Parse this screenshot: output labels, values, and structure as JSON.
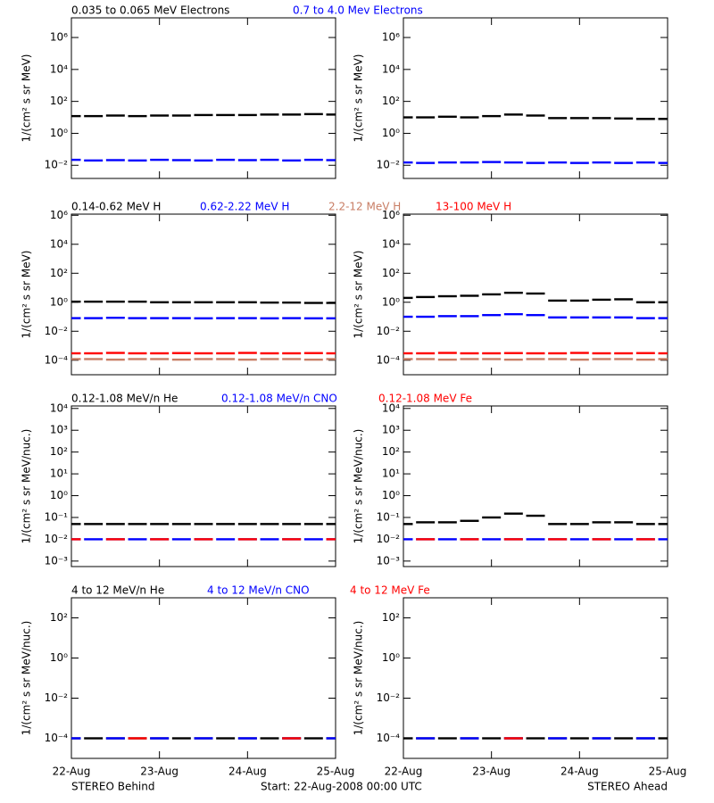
{
  "chart_data": [
    {
      "type": "scatter",
      "log": true,
      "ylabel": "1/(cm² s sr MeV)",
      "ylim": [
        0.0015,
        17000000
      ],
      "yticks": [
        {
          "value": 0.01,
          "label": "10⁻²"
        },
        {
          "value": 1,
          "label": "10⁰"
        },
        {
          "value": 100,
          "label": "10²"
        },
        {
          "value": 10000,
          "label": "10⁴"
        },
        {
          "value": 1000000,
          "label": "10⁶"
        }
      ],
      "x": [
        0,
        0.25,
        0.5,
        0.75,
        1,
        1.25,
        1.5,
        1.75,
        2,
        2.25,
        2.5,
        2.75,
        3
      ],
      "series": [
        {
          "name": "0.035 to 0.065 MeV Electrons",
          "color": "#000000",
          "values": [
            [
              12,
              12,
              13,
              12,
              13,
              13,
              14,
              14,
              14,
              15,
              15,
              16,
              15
            ],
            [
              10,
              10,
              11,
              10,
              12,
              15,
              13,
              9,
              9,
              9,
              8.5,
              8,
              8
            ]
          ]
        },
        {
          "name": "0.7 to 4.0 Mev Electrons",
          "color": "#0000ff",
          "values": [
            [
              0.022,
              0.02,
              0.021,
              0.02,
              0.022,
              0.021,
              0.02,
              0.022,
              0.021,
              0.022,
              0.02,
              0.022,
              0.021
            ],
            [
              0.015,
              0.014,
              0.015,
              0.015,
              0.016,
              0.015,
              0.014,
              0.015,
              0.014,
              0.015,
              0.014,
              0.015,
              0.014
            ]
          ]
        }
      ]
    },
    {
      "type": "scatter",
      "log": true,
      "ylabel": "1/(cm² s sr MeV)",
      "ylim": [
        1e-05,
        1200000
      ],
      "yticks": [
        {
          "value": 0.0001,
          "label": "10⁻⁴"
        },
        {
          "value": 0.01,
          "label": "10⁻²"
        },
        {
          "value": 1,
          "label": "10⁰"
        },
        {
          "value": 100,
          "label": "10²"
        },
        {
          "value": 10000,
          "label": "10⁴"
        },
        {
          "value": 1000000,
          "label": "10⁶"
        }
      ],
      "x": [
        0,
        0.25,
        0.5,
        0.75,
        1,
        1.25,
        1.5,
        1.75,
        2,
        2.25,
        2.5,
        2.75,
        3
      ],
      "series": [
        {
          "name": "0.14-0.62 MeV H",
          "color": "#000000",
          "values": [
            [
              1.1,
              1.1,
              1.1,
              1.1,
              1.0,
              1.0,
              1.0,
              1.0,
              1.0,
              0.95,
              0.95,
              0.9,
              0.9
            ],
            [
              2,
              2.3,
              2.6,
              2.8,
              3.5,
              4.5,
              4,
              1.3,
              1.3,
              1.5,
              1.6,
              1.0,
              1.0
            ]
          ]
        },
        {
          "name": "0.62-2.22 MeV H",
          "color": "#0000ff",
          "values": [
            [
              0.08,
              0.08,
              0.085,
              0.08,
              0.08,
              0.08,
              0.078,
              0.08,
              0.08,
              0.078,
              0.08,
              0.078,
              0.078
            ],
            [
              0.1,
              0.1,
              0.11,
              0.11,
              0.13,
              0.15,
              0.13,
              0.09,
              0.09,
              0.09,
              0.09,
              0.08,
              0.08
            ]
          ]
        },
        {
          "name": "2.2-12 MeV H",
          "color": "#c87d64",
          "values": [
            [
              0.00012,
              0.00012,
              0.00011,
              0.00012,
              0.00012,
              0.00011,
              0.00012,
              0.00012,
              0.00011,
              0.00012,
              0.00012,
              0.00011,
              0.00012
            ],
            [
              0.00012,
              0.00012,
              0.00011,
              0.00012,
              0.00012,
              0.00011,
              0.00012,
              0.00012,
              0.00011,
              0.00012,
              0.00012,
              0.00011,
              0.00012
            ]
          ]
        },
        {
          "name": "13-100 MeV H",
          "color": "#ff0000",
          "values": [
            [
              0.0003,
              0.0003,
              0.00032,
              0.0003,
              0.0003,
              0.00031,
              0.0003,
              0.0003,
              0.00032,
              0.0003,
              0.0003,
              0.00031,
              0.0003
            ],
            [
              0.0003,
              0.0003,
              0.00032,
              0.0003,
              0.0003,
              0.00031,
              0.0003,
              0.0003,
              0.00032,
              0.0003,
              0.0003,
              0.00031,
              0.0003
            ]
          ]
        }
      ]
    },
    {
      "type": "scatter",
      "log": true,
      "ylabel": "1/(cm² s sr MeV/nuc.)",
      "ylim": [
        0.00056,
        13000
      ],
      "yticks": [
        {
          "value": 0.001,
          "label": "10⁻³"
        },
        {
          "value": 0.01,
          "label": "10⁻²"
        },
        {
          "value": 0.1,
          "label": "10⁻¹"
        },
        {
          "value": 1,
          "label": "10⁰"
        },
        {
          "value": 10,
          "label": "10¹"
        },
        {
          "value": 100,
          "label": "10²"
        },
        {
          "value": 1000,
          "label": "10³"
        },
        {
          "value": 10000,
          "label": "10⁴"
        }
      ],
      "x": [
        0,
        0.25,
        0.5,
        0.75,
        1,
        1.25,
        1.5,
        1.75,
        2,
        2.25,
        2.5,
        2.75,
        3
      ],
      "series": [
        {
          "name": "0.12-1.08 MeV/n He",
          "color": "#000000",
          "values": [
            [
              0.05,
              0.05,
              0.05,
              0.05,
              0.05,
              0.05,
              0.05,
              0.05,
              0.05,
              0.05,
              0.05,
              0.05,
              0.05
            ],
            [
              0.05,
              0.06,
              0.06,
              0.07,
              0.1,
              0.15,
              0.12,
              0.05,
              0.05,
              0.06,
              0.06,
              0.05,
              0.05
            ]
          ]
        },
        {
          "name": "0.12-1.08 MeV/n CNO",
          "color": "#0000ff",
          "values": [
            [
              0.01,
              0.01,
              0.01,
              0.01,
              0.01,
              0.01,
              0.01,
              0.01,
              0.01,
              0.01,
              0.01,
              0.01,
              0.01
            ],
            [
              0.01,
              0.01,
              0.01,
              0.01,
              0.01,
              0.01,
              0.01,
              0.01,
              0.01,
              0.01,
              0.01,
              0.01,
              0.01
            ]
          ]
        },
        {
          "name": "0.12-1.08 MeV Fe",
          "color": "#ff0000",
          "values": [
            [
              0.01,
              null,
              0.01,
              null,
              0.01,
              null,
              0.01,
              null,
              0.01,
              null,
              0.01,
              null,
              0.01
            ],
            [
              null,
              0.01,
              null,
              0.01,
              null,
              0.01,
              null,
              0.01,
              null,
              0.01,
              null,
              0.01,
              null
            ]
          ]
        }
      ]
    },
    {
      "type": "scatter",
      "log": true,
      "ylabel": "1/(cm² s sr MeV/nuc.)",
      "ylim": [
        1e-05,
        1000
      ],
      "yticks": [
        {
          "value": 0.0001,
          "label": "10⁻⁴"
        },
        {
          "value": 0.01,
          "label": "10⁻²"
        },
        {
          "value": 1,
          "label": "10⁰"
        },
        {
          "value": 100,
          "label": "10²"
        }
      ],
      "xlim": [
        0,
        3
      ],
      "xticks": [
        {
          "value": 0,
          "label": "22-Aug"
        },
        {
          "value": 1,
          "label": "23-Aug"
        },
        {
          "value": 2,
          "label": "24-Aug"
        },
        {
          "value": 3,
          "label": "25-Aug"
        }
      ],
      "x": [
        0,
        0.25,
        0.5,
        0.75,
        1,
        1.25,
        1.5,
        1.75,
        2,
        2.25,
        2.5,
        2.75,
        3
      ],
      "series": [
        {
          "name": "4 to 12 MeV/n He",
          "color": "#000000",
          "values": [
            [
              0.0001,
              0.0001,
              0.0001,
              0.0001,
              0.0001,
              0.0001,
              0.0001,
              0.0001,
              0.0001,
              0.0001,
              0.0001,
              0.0001,
              0.0001
            ],
            [
              0.0001,
              0.0001,
              0.0001,
              0.0001,
              0.0001,
              0.0001,
              0.0001,
              0.0001,
              0.0001,
              0.0001,
              0.0001,
              0.0001,
              0.0001
            ]
          ]
        },
        {
          "name": "4 to 12 MeV/n CNO",
          "color": "#0000ff",
          "values": [
            [
              0.0001,
              null,
              0.0001,
              null,
              0.0001,
              null,
              0.0001,
              null,
              0.0001,
              null,
              0.0001,
              null,
              0.0001
            ],
            [
              null,
              0.0001,
              null,
              0.0001,
              null,
              0.0001,
              null,
              0.0001,
              null,
              0.0001,
              null,
              0.0001,
              null
            ]
          ]
        },
        {
          "name": "4 to 12 MeV Fe",
          "color": "#ff0000",
          "values": [
            [
              null,
              null,
              null,
              0.0001,
              null,
              null,
              null,
              null,
              null,
              null,
              0.0001,
              null,
              null
            ],
            [
              null,
              null,
              null,
              null,
              null,
              0.0001,
              null,
              null,
              null,
              null,
              null,
              null,
              null
            ]
          ]
        }
      ]
    }
  ],
  "panels": [
    "STEREO Behind",
    "STEREO Ahead"
  ],
  "start": "Start: 22-Aug-2008 00:00 UTC"
}
